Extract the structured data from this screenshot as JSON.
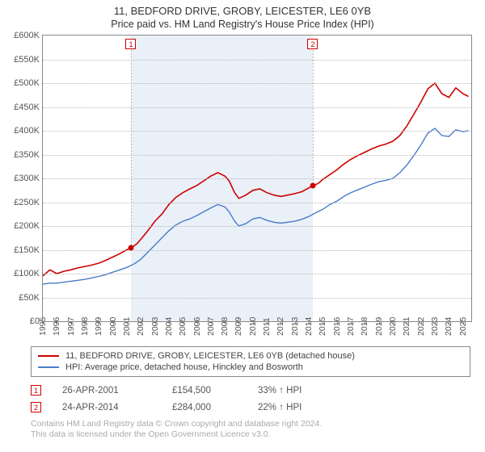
{
  "titles": {
    "line1": "11, BEDFORD DRIVE, GROBY, LEICESTER, LE6 0YB",
    "line2": "Price paid vs. HM Land Registry's House Price Index (HPI)"
  },
  "chart": {
    "type": "line",
    "background_color": "#ffffff",
    "band_color": "#eaf0f8",
    "grid_color": "#b8b8b8",
    "axis_color": "#888888",
    "x": {
      "min": 1995,
      "max": 2025.6,
      "ticks": [
        1995,
        1996,
        1997,
        1998,
        1999,
        2000,
        2001,
        2002,
        2003,
        2004,
        2005,
        2006,
        2007,
        2008,
        2009,
        2010,
        2011,
        2012,
        2013,
        2014,
        2015,
        2016,
        2017,
        2018,
        2019,
        2020,
        2021,
        2022,
        2023,
        2024,
        2025
      ]
    },
    "y": {
      "min": 0,
      "max": 600000,
      "tick_step": 50000,
      "tick_labels": [
        "£0",
        "£50K",
        "£100K",
        "£150K",
        "£200K",
        "£250K",
        "£300K",
        "£350K",
        "£400K",
        "£450K",
        "£500K",
        "£550K",
        "£600K"
      ]
    },
    "highlight_band": {
      "from": 2001.32,
      "to": 2014.31
    },
    "series": [
      {
        "id": "property",
        "label": "11, BEDFORD DRIVE, GROBY, LEICESTER, LE6 0YB (detached house)",
        "color": "#cc0000",
        "line_width": 1.6,
        "points": [
          [
            1995.0,
            95000
          ],
          [
            1995.5,
            108000
          ],
          [
            1996.0,
            100000
          ],
          [
            1996.5,
            105000
          ],
          [
            1997.0,
            108000
          ],
          [
            1997.5,
            112000
          ],
          [
            1998.0,
            115000
          ],
          [
            1998.5,
            118000
          ],
          [
            1999.0,
            122000
          ],
          [
            1999.5,
            128000
          ],
          [
            2000.0,
            135000
          ],
          [
            2000.5,
            142000
          ],
          [
            2001.0,
            150000
          ],
          [
            2001.32,
            154500
          ],
          [
            2001.7,
            162000
          ],
          [
            2002.0,
            172000
          ],
          [
            2002.5,
            190000
          ],
          [
            2003.0,
            210000
          ],
          [
            2003.5,
            225000
          ],
          [
            2004.0,
            245000
          ],
          [
            2004.5,
            260000
          ],
          [
            2005.0,
            270000
          ],
          [
            2005.5,
            278000
          ],
          [
            2006.0,
            285000
          ],
          [
            2006.5,
            295000
          ],
          [
            2007.0,
            305000
          ],
          [
            2007.5,
            312000
          ],
          [
            2008.0,
            305000
          ],
          [
            2008.3,
            295000
          ],
          [
            2008.7,
            270000
          ],
          [
            2009.0,
            258000
          ],
          [
            2009.5,
            265000
          ],
          [
            2010.0,
            275000
          ],
          [
            2010.5,
            278000
          ],
          [
            2011.0,
            270000
          ],
          [
            2011.5,
            265000
          ],
          [
            2012.0,
            262000
          ],
          [
            2012.5,
            265000
          ],
          [
            2013.0,
            268000
          ],
          [
            2013.5,
            272000
          ],
          [
            2014.0,
            280000
          ],
          [
            2014.31,
            284000
          ],
          [
            2014.7,
            290000
          ],
          [
            2015.0,
            298000
          ],
          [
            2015.5,
            308000
          ],
          [
            2016.0,
            318000
          ],
          [
            2016.5,
            330000
          ],
          [
            2017.0,
            340000
          ],
          [
            2017.5,
            348000
          ],
          [
            2018.0,
            355000
          ],
          [
            2018.5,
            362000
          ],
          [
            2019.0,
            368000
          ],
          [
            2019.5,
            372000
          ],
          [
            2020.0,
            378000
          ],
          [
            2020.5,
            390000
          ],
          [
            2021.0,
            410000
          ],
          [
            2021.5,
            435000
          ],
          [
            2022.0,
            460000
          ],
          [
            2022.5,
            488000
          ],
          [
            2023.0,
            500000
          ],
          [
            2023.5,
            478000
          ],
          [
            2024.0,
            470000
          ],
          [
            2024.5,
            490000
          ],
          [
            2025.0,
            478000
          ],
          [
            2025.4,
            472000
          ]
        ]
      },
      {
        "id": "hpi",
        "label": "HPI: Average price, detached house, Hinckley and Bosworth",
        "color": "#4a7bc8",
        "line_width": 1.4,
        "points": [
          [
            1995.0,
            78000
          ],
          [
            1995.5,
            80000
          ],
          [
            1996.0,
            80000
          ],
          [
            1996.5,
            82000
          ],
          [
            1997.0,
            84000
          ],
          [
            1997.5,
            86000
          ],
          [
            1998.0,
            88000
          ],
          [
            1998.5,
            91000
          ],
          [
            1999.0,
            94000
          ],
          [
            1999.5,
            98000
          ],
          [
            2000.0,
            103000
          ],
          [
            2000.5,
            108000
          ],
          [
            2001.0,
            113000
          ],
          [
            2001.5,
            120000
          ],
          [
            2002.0,
            130000
          ],
          [
            2002.5,
            145000
          ],
          [
            2003.0,
            160000
          ],
          [
            2003.5,
            175000
          ],
          [
            2004.0,
            190000
          ],
          [
            2004.5,
            202000
          ],
          [
            2005.0,
            210000
          ],
          [
            2005.5,
            215000
          ],
          [
            2006.0,
            222000
          ],
          [
            2006.5,
            230000
          ],
          [
            2007.0,
            238000
          ],
          [
            2007.5,
            245000
          ],
          [
            2008.0,
            240000
          ],
          [
            2008.3,
            230000
          ],
          [
            2008.7,
            210000
          ],
          [
            2009.0,
            200000
          ],
          [
            2009.5,
            205000
          ],
          [
            2010.0,
            215000
          ],
          [
            2010.5,
            218000
          ],
          [
            2011.0,
            212000
          ],
          [
            2011.5,
            208000
          ],
          [
            2012.0,
            206000
          ],
          [
            2012.5,
            208000
          ],
          [
            2013.0,
            210000
          ],
          [
            2013.5,
            214000
          ],
          [
            2014.0,
            220000
          ],
          [
            2014.5,
            228000
          ],
          [
            2015.0,
            235000
          ],
          [
            2015.5,
            245000
          ],
          [
            2016.0,
            252000
          ],
          [
            2016.5,
            262000
          ],
          [
            2017.0,
            270000
          ],
          [
            2017.5,
            276000
          ],
          [
            2018.0,
            282000
          ],
          [
            2018.5,
            288000
          ],
          [
            2019.0,
            293000
          ],
          [
            2019.5,
            296000
          ],
          [
            2020.0,
            300000
          ],
          [
            2020.5,
            312000
          ],
          [
            2021.0,
            328000
          ],
          [
            2021.5,
            348000
          ],
          [
            2022.0,
            370000
          ],
          [
            2022.5,
            395000
          ],
          [
            2023.0,
            405000
          ],
          [
            2023.5,
            390000
          ],
          [
            2024.0,
            388000
          ],
          [
            2024.5,
            402000
          ],
          [
            2025.0,
            398000
          ],
          [
            2025.4,
            400000
          ]
        ]
      }
    ],
    "sale_markers": [
      {
        "n": "1",
        "x": 2001.32,
        "y": 154500,
        "color": "#cc0000"
      },
      {
        "n": "2",
        "x": 2014.31,
        "y": 284000,
        "color": "#cc0000"
      }
    ]
  },
  "legend": {
    "rows": [
      {
        "color": "#cc0000",
        "label": "11, BEDFORD DRIVE, GROBY, LEICESTER, LE6 0YB (detached house)"
      },
      {
        "color": "#4a7bc8",
        "label": "HPI: Average price, detached house, Hinckley and Bosworth"
      }
    ]
  },
  "sales": [
    {
      "n": "1",
      "date": "26-APR-2001",
      "price": "£154,500",
      "pct": "33% ↑ HPI"
    },
    {
      "n": "2",
      "date": "24-APR-2014",
      "price": "£284,000",
      "pct": "22% ↑ HPI"
    }
  ],
  "attribution": {
    "line1": "Contains HM Land Registry data © Crown copyright and database right 2024.",
    "line2": "This data is licensed under the Open Government Licence v3.0."
  }
}
